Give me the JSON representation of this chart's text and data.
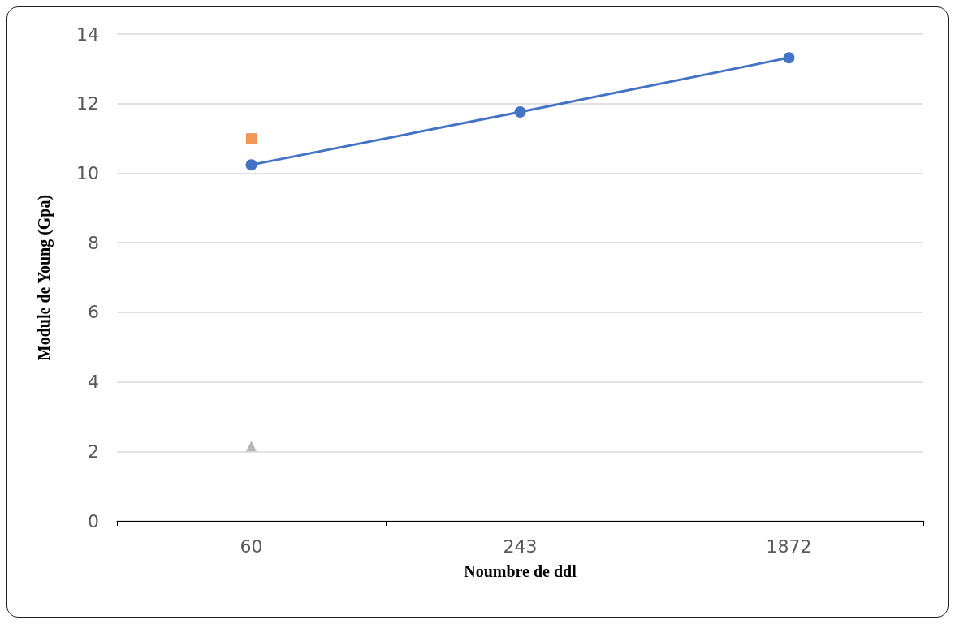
{
  "chart_data": {
    "type": "line",
    "xlabel": "Noumbre de ddl",
    "ylabel": "Module de Young (Gpa)",
    "categories": [
      "60",
      "243",
      "1872"
    ],
    "series": [
      {
        "color": "#4472c4",
        "marker": "circle",
        "values": [
          10.24,
          11.76,
          13.32
        ]
      },
      {
        "type": "scatter",
        "color": "#ed7d31",
        "marker": "square",
        "values": [
          11.0,
          null,
          null
        ]
      },
      {
        "type": "scatter",
        "color": "#a5a5a5",
        "marker": "triangle",
        "values": [
          2.15,
          null,
          null
        ]
      }
    ],
    "ylim": [
      0,
      14
    ],
    "yticks": [
      0,
      2,
      4,
      6,
      8,
      10,
      12,
      14
    ],
    "grid": "y"
  }
}
